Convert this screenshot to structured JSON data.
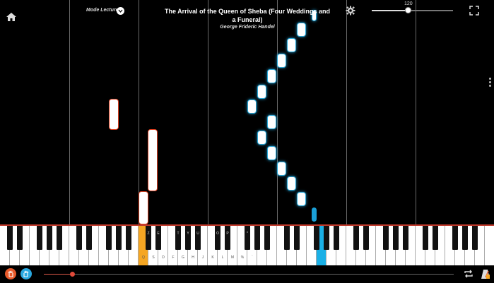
{
  "header": {
    "title": "The Arrival of the Queen of Sheba (Four Weddings and a Funeral)",
    "composer": "George Frideric Handel",
    "mode_label": "Mode Lecture",
    "tempo_value": "120",
    "tempo_fraction": 0.45
  },
  "icons": {
    "home": "home-icon",
    "mode": "chevron-down-icon",
    "settings": "gear-icon",
    "fullscreen": "fullscreen-icon",
    "more": "more-vertical-icon",
    "left_hand": "left-hand-icon",
    "right_hand": "right-hand-icon",
    "loop": "loop-icon",
    "metronome": "metronome-icon"
  },
  "colors": {
    "left_hand": "#e85a2a",
    "right_hand": "#29a8e0",
    "progress": "#e05a4a"
  },
  "keyboard": {
    "white_labels": [
      "Q",
      "S",
      "D",
      "F",
      "G",
      "H",
      "J",
      "K",
      "L",
      "M",
      "%",
      "`"
    ],
    "black_labels": [
      "Z",
      "E",
      "T",
      "Y",
      "U",
      "O",
      "P",
      "*"
    ]
  },
  "playback": {
    "progress_fraction": 0.07
  }
}
